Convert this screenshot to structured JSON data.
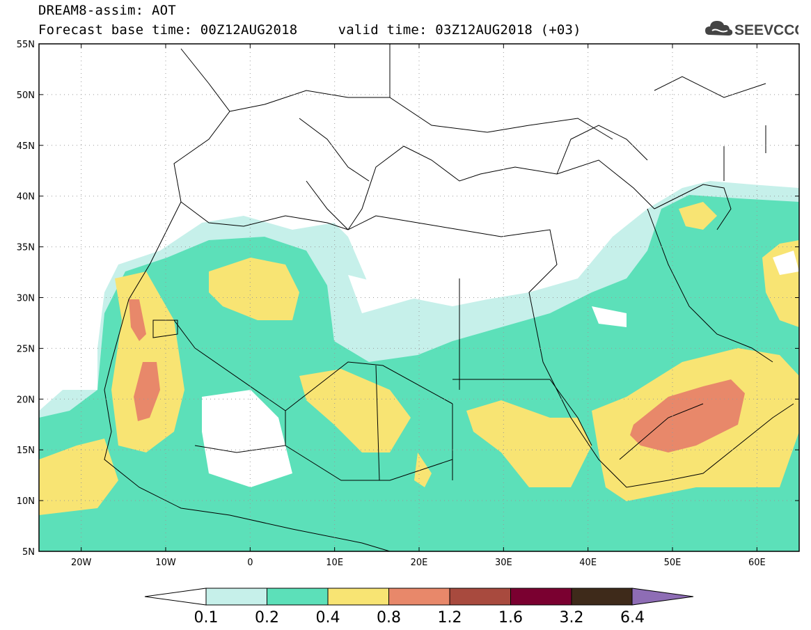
{
  "title": {
    "line1": "DREAM8-assim: AOT",
    "line2": "Forecast base time: 00Z12AUG2018     valid time: 03Z12AUG2018 (+03)"
  },
  "logo": {
    "text": "SEEVCCC",
    "icon": "cloud-icon"
  },
  "map": {
    "lon_range": [
      -25,
      65
    ],
    "lat_range": [
      5,
      55
    ],
    "lon_ticks": [
      "20W",
      "10W",
      "0",
      "10E",
      "20E",
      "30E",
      "40E",
      "50E",
      "60E"
    ],
    "lat_ticks": [
      "5N",
      "10N",
      "15N",
      "20N",
      "25N",
      "30N",
      "35N",
      "40N",
      "45N",
      "50N",
      "55N"
    ],
    "grid": "dotted"
  },
  "colorbar": {
    "levels": [
      "0.1",
      "0.2",
      "0.4",
      "0.8",
      "1.2",
      "1.6",
      "3.2",
      "6.4"
    ],
    "colors": [
      "#ffffff",
      "#c6f0ea",
      "#5ce0b9",
      "#f8e473",
      "#e8886a",
      "#a84a3e",
      "#7a0030",
      "#3e2a1a",
      "#8e6db5"
    ]
  }
}
